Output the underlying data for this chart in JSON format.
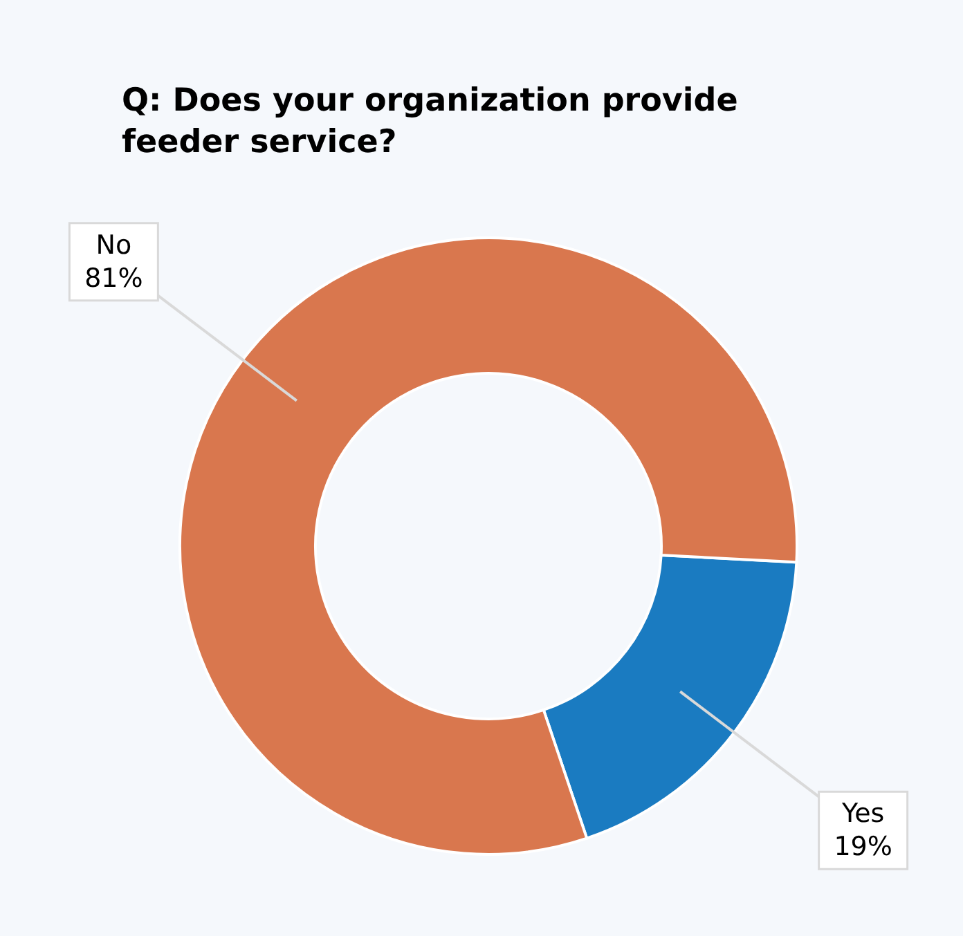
{
  "chart_data": {
    "type": "donut",
    "title": "Q: Does your organization provide feeder service?",
    "categories": [
      "Yes",
      "No"
    ],
    "values": [
      19,
      81
    ],
    "colors": [
      "#1a7bc1",
      "#d9774e"
    ],
    "data_labels": true,
    "value_labels": [
      "19%",
      "81%"
    ]
  }
}
